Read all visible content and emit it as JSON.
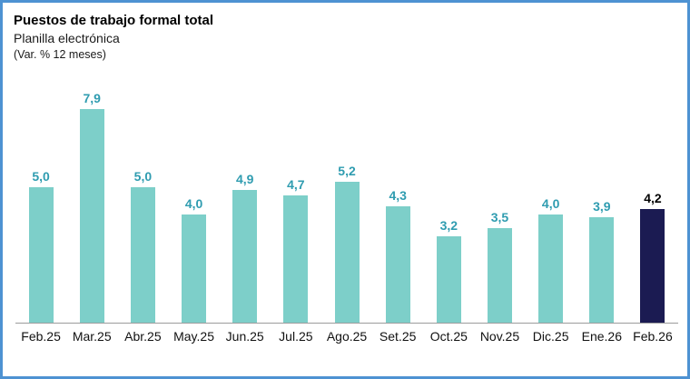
{
  "header": {
    "title": "Puestos de trabajo formal total",
    "subtitle": "Planilla electrónica",
    "note": "(Var. % 12 meses)"
  },
  "chart_data": {
    "type": "bar",
    "title": "Puestos de trabajo formal total",
    "subtitle": "Planilla electrónica",
    "unit_note": "(Var. % 12 meses)",
    "categories": [
      "Feb.25",
      "Mar.25",
      "Abr.25",
      "May.25",
      "Jun.25",
      "Jul.25",
      "Ago.25",
      "Set.25",
      "Oct.25",
      "Nov.25",
      "Dic.25",
      "Ene.26",
      "Feb.26"
    ],
    "values": [
      5.0,
      7.9,
      5.0,
      4.0,
      4.9,
      4.7,
      5.2,
      4.3,
      3.2,
      3.5,
      4.0,
      3.9,
      4.2
    ],
    "value_labels": [
      "5,0",
      "7,9",
      "5,0",
      "4,0",
      "4,9",
      "4,7",
      "5,2",
      "4,3",
      "3,2",
      "3,5",
      "4,0",
      "3,9",
      "4,2"
    ],
    "highlight_index": 12,
    "ylim": [
      0,
      8.8
    ],
    "grid": false,
    "legend": false,
    "colors": {
      "bar": "#7DCFC9",
      "highlight_bar": "#1B1B52",
      "value_label": "#2F9CB0",
      "highlight_value_label": "#000000",
      "frame_border": "#4E92D2",
      "axis_line": "#9C9C9C"
    }
  }
}
